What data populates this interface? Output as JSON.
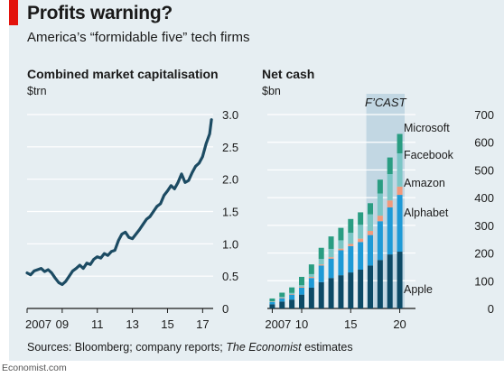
{
  "header": {
    "title": "Profits warning?",
    "subtitle": "America’s “formidable five” tech firms"
  },
  "footer": {
    "source_prefix": "Sources: Bloomberg; company reports; ",
    "source_italic": "The Economist",
    "source_suffix": " estimates",
    "publisher": "Economist.com"
  },
  "colors": {
    "background": "#e6eef2",
    "forecast_band": "#c2d7e3",
    "line": "#1c4b63",
    "apple": "#0d4a66",
    "alphabet": "#1e9ad6",
    "amazon": "#f29a7c",
    "facebook": "#7bc6c6",
    "microsoft": "#2a9d82",
    "accent": "#e3120b"
  },
  "chart_data": [
    {
      "type": "line",
      "title": "Combined market capitalisation",
      "ylabel": "$trn",
      "ylim": [
        0,
        3
      ],
      "yticks": [
        0,
        0.5,
        1.0,
        1.5,
        2.0,
        2.5,
        3.0
      ],
      "ytick_labels": [
        "0",
        "0.5",
        "1.0",
        "1.5",
        "2.0",
        "2.5",
        "3.0"
      ],
      "xlim": [
        2007,
        2017.6
      ],
      "xticks": [
        2007,
        2009,
        2011,
        2013,
        2015,
        2017
      ],
      "xtick_labels": [
        "2007",
        "09",
        "11",
        "13",
        "15",
        "17"
      ],
      "grid": true,
      "series": [
        {
          "x": [
            2007.0,
            2007.2,
            2007.4,
            2007.6,
            2007.8,
            2008.0,
            2008.2,
            2008.4,
            2008.6,
            2008.8,
            2009.0,
            2009.2,
            2009.4,
            2009.6,
            2009.8,
            2010.0,
            2010.2,
            2010.4,
            2010.6,
            2010.8,
            2011.0,
            2011.2,
            2011.4,
            2011.6,
            2011.8,
            2012.0,
            2012.2,
            2012.4,
            2012.6,
            2012.8,
            2013.0,
            2013.2,
            2013.4,
            2013.6,
            2013.8,
            2014.0,
            2014.2,
            2014.4,
            2014.6,
            2014.8,
            2015.0,
            2015.2,
            2015.4,
            2015.6,
            2015.8,
            2016.0,
            2016.2,
            2016.4,
            2016.6,
            2016.8,
            2017.0,
            2017.2,
            2017.4,
            2017.5
          ],
          "y": [
            0.55,
            0.52,
            0.58,
            0.6,
            0.62,
            0.57,
            0.6,
            0.55,
            0.47,
            0.4,
            0.37,
            0.42,
            0.5,
            0.58,
            0.62,
            0.67,
            0.62,
            0.7,
            0.68,
            0.76,
            0.8,
            0.78,
            0.85,
            0.82,
            0.88,
            0.9,
            1.05,
            1.15,
            1.18,
            1.1,
            1.08,
            1.15,
            1.22,
            1.3,
            1.38,
            1.42,
            1.5,
            1.58,
            1.62,
            1.75,
            1.82,
            1.9,
            1.85,
            1.95,
            2.08,
            1.95,
            1.98,
            2.1,
            2.2,
            2.25,
            2.35,
            2.55,
            2.7,
            2.92
          ]
        }
      ]
    },
    {
      "type": "bar",
      "stacked": true,
      "title": "Net cash",
      "ylabel": "$bn",
      "ylim": [
        0,
        700
      ],
      "yticks": [
        0,
        100,
        200,
        300,
        400,
        500,
        600,
        700
      ],
      "ytick_labels": [
        "0",
        "100",
        "200",
        "300",
        "400",
        "500",
        "600",
        "700"
      ],
      "categories": [
        2007,
        2008,
        2009,
        2010,
        2011,
        2012,
        2013,
        2014,
        2015,
        2016,
        2017,
        2018,
        2019,
        2020
      ],
      "xtick_labels": [
        "2007",
        "10",
        "15",
        "20"
      ],
      "xtick_values": [
        2007,
        2010,
        2015,
        2020
      ],
      "forecast_label": "F’CAST",
      "forecast_from": 2017,
      "grid": true,
      "series": [
        {
          "name": "Apple",
          "values": [
            15,
            25,
            32,
            50,
            75,
            95,
            110,
            120,
            130,
            140,
            155,
            175,
            195,
            205
          ]
        },
        {
          "name": "Alphabet",
          "values": [
            8,
            12,
            18,
            25,
            35,
            60,
            70,
            90,
            95,
            100,
            110,
            140,
            170,
            205
          ]
        },
        {
          "name": "Amazon",
          "values": [
            1,
            2,
            2,
            3,
            4,
            4,
            5,
            6,
            8,
            12,
            15,
            20,
            25,
            30
          ]
        },
        {
          "name": "Facebook",
          "values": [
            2,
            3,
            4,
            6,
            10,
            20,
            30,
            30,
            40,
            50,
            60,
            80,
            95,
            120
          ]
        },
        {
          "name": "Microsoft",
          "values": [
            10,
            15,
            20,
            30,
            35,
            40,
            45,
            45,
            50,
            45,
            40,
            50,
            60,
            70
          ]
        }
      ],
      "segment_labels": [
        "Microsoft",
        "Facebook",
        "Amazon",
        "Alphabet",
        "Apple"
      ]
    }
  ]
}
